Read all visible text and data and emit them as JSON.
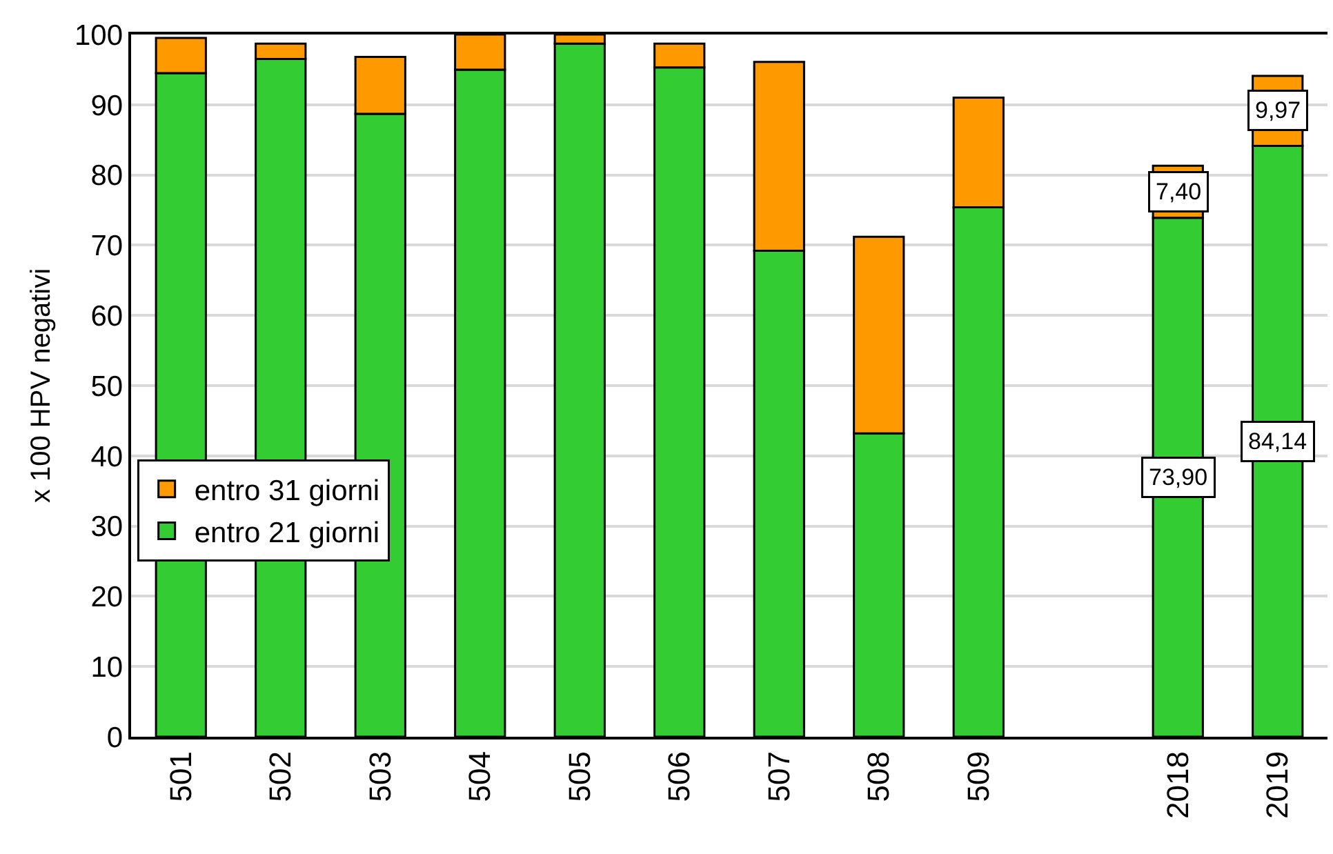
{
  "chart_data": {
    "type": "bar",
    "stacked": true,
    "ylabel": "x 100 HPV negativi",
    "categories": [
      "501",
      "502",
      "503",
      "504",
      "505",
      "506",
      "507",
      "508",
      "509",
      null,
      "2018",
      "2019"
    ],
    "series": [
      {
        "name": "entro 21 giorni",
        "color": "#33cc33",
        "values": [
          94.5,
          96.5,
          88.7,
          95.0,
          98.7,
          95.3,
          69.2,
          43.2,
          75.4,
          null,
          73.9,
          84.14
        ],
        "value_labels": [
          null,
          null,
          null,
          null,
          null,
          null,
          null,
          null,
          null,
          null,
          "73,90",
          "84,14"
        ]
      },
      {
        "name": "entro 31 giorni",
        "color": "#ff9900",
        "values": [
          5.0,
          2.2,
          8.1,
          5.0,
          1.3,
          3.4,
          26.9,
          28.0,
          15.6,
          null,
          7.4,
          9.97
        ],
        "value_labels": [
          null,
          null,
          null,
          null,
          null,
          null,
          null,
          null,
          null,
          null,
          "7,40",
          "9,97"
        ]
      }
    ],
    "ylim": [
      0,
      100
    ],
    "yticks": [
      0,
      10,
      20,
      30,
      40,
      50,
      60,
      70,
      80,
      90,
      100
    ],
    "grid": "y",
    "legend": "bottom left"
  }
}
